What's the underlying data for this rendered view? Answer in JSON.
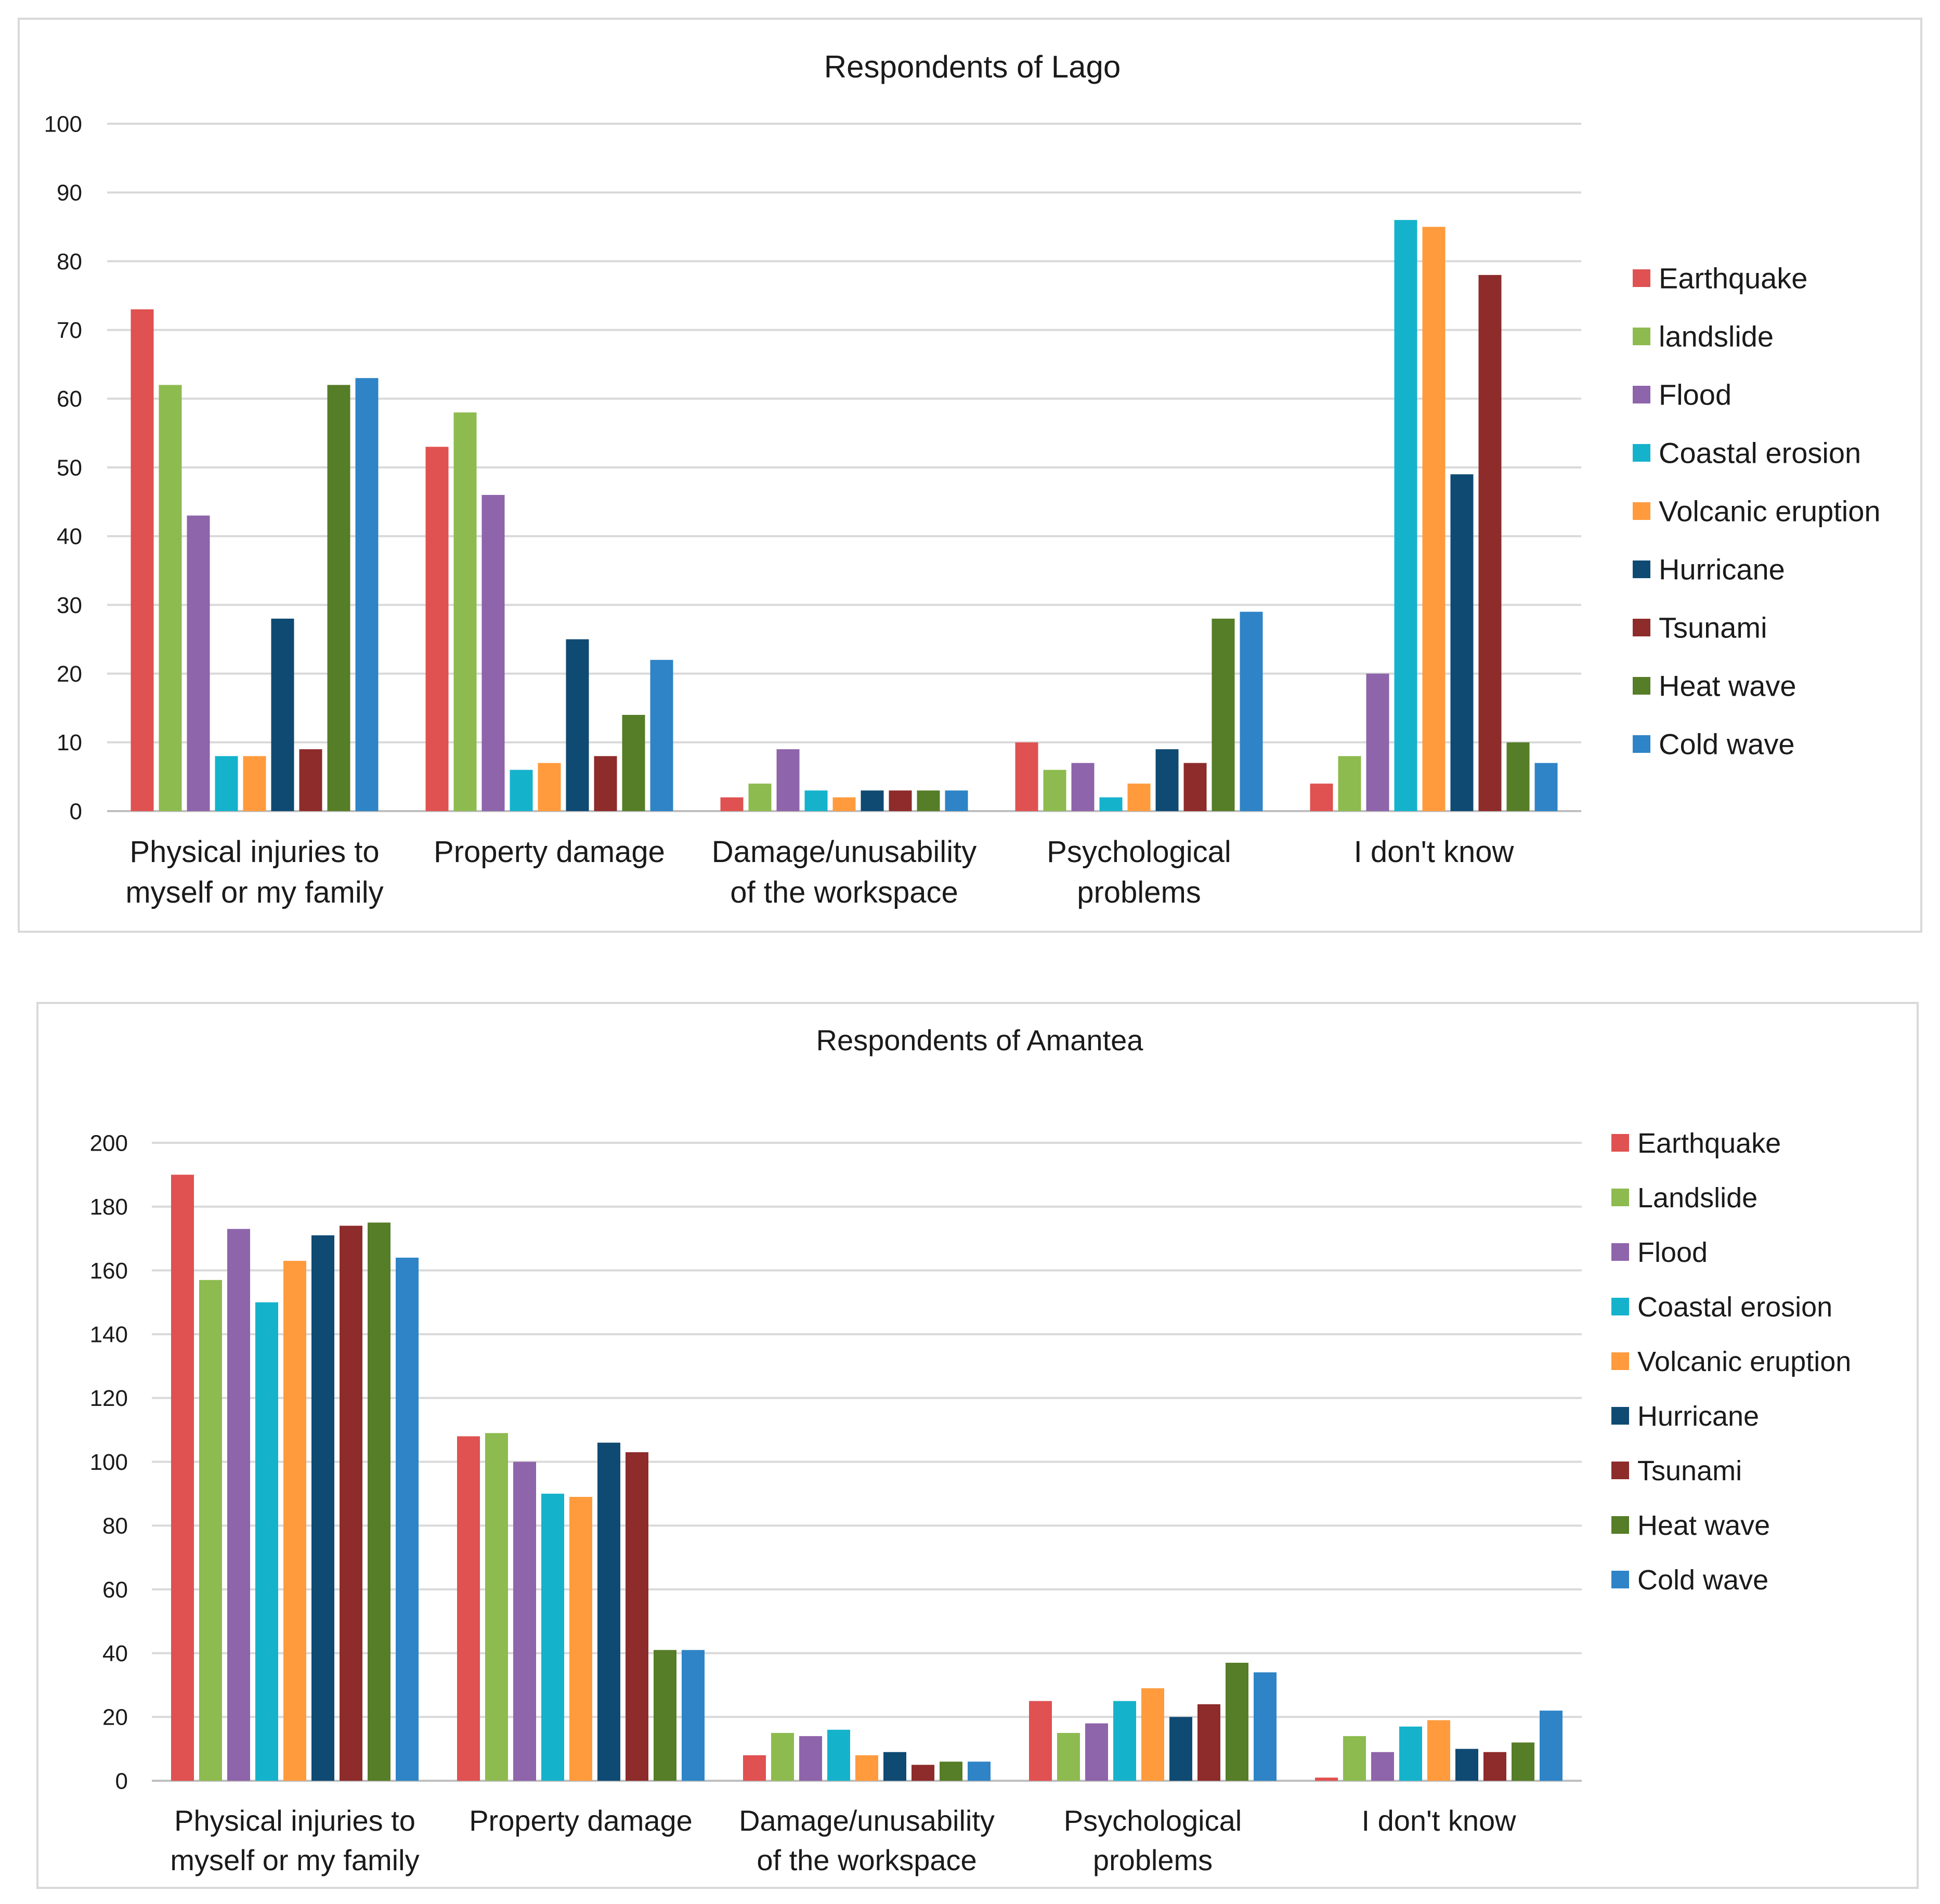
{
  "colors": [
    "#e05151",
    "#8dbb4f",
    "#8e64aa",
    "#15b2cc",
    "#ff9b3d",
    "#0f4a73",
    "#8e2b2b",
    "#567d27",
    "#2e84c6"
  ],
  "chart_data": [
    {
      "type": "bar",
      "title": "Respondents of Lago",
      "categories": [
        [
          "Physical injuries to",
          "myself or my family"
        ],
        [
          "Property damage"
        ],
        [
          "Damage/unusability",
          "of the workspace"
        ],
        [
          "Psychological",
          "problems"
        ],
        [
          "I don't know"
        ]
      ],
      "ylim": [
        0,
        100
      ],
      "yticks": [
        "0",
        "10",
        "20",
        "30",
        "40",
        "50",
        "60",
        "70",
        "80",
        "90",
        "100"
      ],
      "grid": true,
      "legend": "right",
      "series": [
        {
          "name": "Earthquake",
          "values": [
            73,
            53,
            2,
            10,
            4
          ]
        },
        {
          "name": "landslide",
          "values": [
            62,
            58,
            4,
            6,
            8
          ]
        },
        {
          "name": "Flood",
          "values": [
            43,
            46,
            9,
            7,
            20
          ]
        },
        {
          "name": "Coastal erosion",
          "values": [
            8,
            6,
            3,
            2,
            86
          ]
        },
        {
          "name": "Volcanic eruption",
          "values": [
            8,
            7,
            2,
            4,
            85
          ]
        },
        {
          "name": "Hurricane",
          "values": [
            28,
            25,
            3,
            9,
            49
          ]
        },
        {
          "name": "Tsunami",
          "values": [
            9,
            8,
            3,
            7,
            78
          ]
        },
        {
          "name": "Heat wave",
          "values": [
            62,
            14,
            3,
            28,
            10
          ]
        },
        {
          "name": "Cold wave",
          "values": [
            63,
            22,
            3,
            29,
            7
          ]
        }
      ]
    },
    {
      "type": "bar",
      "title": "Respondents of Amantea",
      "categories": [
        [
          "Physical injuries to",
          "myself or my family"
        ],
        [
          "Property damage"
        ],
        [
          "Damage/unusability",
          "of the workspace"
        ],
        [
          "Psychological",
          "problems"
        ],
        [
          "I don't know"
        ]
      ],
      "ylim": [
        0,
        200
      ],
      "yticks": [
        "0",
        "20",
        "40",
        "60",
        "80",
        "100",
        "120",
        "140",
        "160",
        "180",
        "200"
      ],
      "grid": true,
      "legend": "right",
      "series": [
        {
          "name": "Earthquake",
          "values": [
            190,
            108,
            8,
            25,
            1
          ]
        },
        {
          "name": "Landslide",
          "values": [
            157,
            109,
            15,
            15,
            14
          ]
        },
        {
          "name": "Flood",
          "values": [
            173,
            100,
            14,
            18,
            9
          ]
        },
        {
          "name": "Coastal erosion",
          "values": [
            150,
            90,
            16,
            25,
            17
          ]
        },
        {
          "name": "Volcanic eruption",
          "values": [
            163,
            89,
            8,
            29,
            19
          ]
        },
        {
          "name": "Hurricane",
          "values": [
            171,
            106,
            9,
            20,
            10
          ]
        },
        {
          "name": "Tsunami",
          "values": [
            174,
            103,
            5,
            24,
            9
          ]
        },
        {
          "name": "Heat wave",
          "values": [
            175,
            41,
            6,
            37,
            12
          ]
        },
        {
          "name": "Cold wave",
          "values": [
            164,
            41,
            6,
            34,
            22
          ]
        }
      ]
    }
  ]
}
